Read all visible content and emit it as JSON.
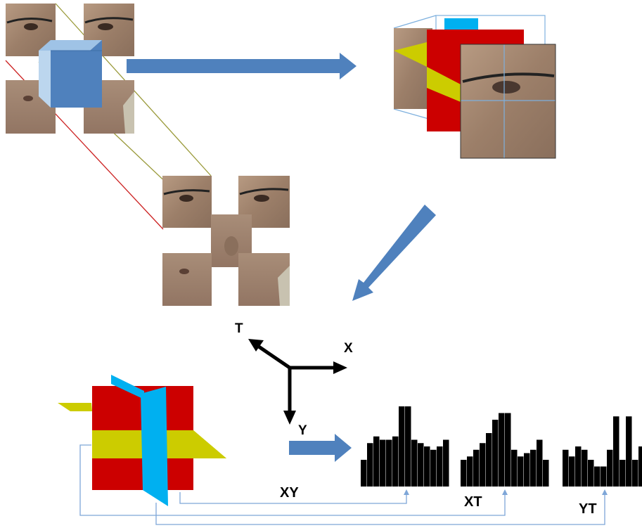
{
  "axes": {
    "t": "T",
    "x": "X",
    "y": "Y"
  },
  "histograms": [
    {
      "label": "XY",
      "values": [
        8,
        13,
        15,
        14,
        14,
        15,
        24,
        24,
        14,
        13,
        12,
        11,
        12,
        14
      ]
    },
    {
      "label": "XT",
      "values": [
        8,
        9,
        11,
        13,
        16,
        20,
        22,
        22,
        11,
        9,
        10,
        11,
        14,
        8
      ]
    },
    {
      "label": "YT",
      "values": [
        11,
        9,
        12,
        11,
        8,
        6,
        6,
        11,
        21,
        8,
        21,
        8,
        12,
        6
      ]
    }
  ],
  "colors": {
    "arrow_blue": "#4f81bd",
    "cube_blue": "#4f81bd",
    "plane_red": "#cc0000",
    "plane_yellow": "#cccc00",
    "plane_cyan": "#00b0f0",
    "connector_blue": "#7ea6d8",
    "skin": "#a78a74"
  },
  "icons": [
    "face-patch-image",
    "cube-volume",
    "orthogonal-planes"
  ]
}
